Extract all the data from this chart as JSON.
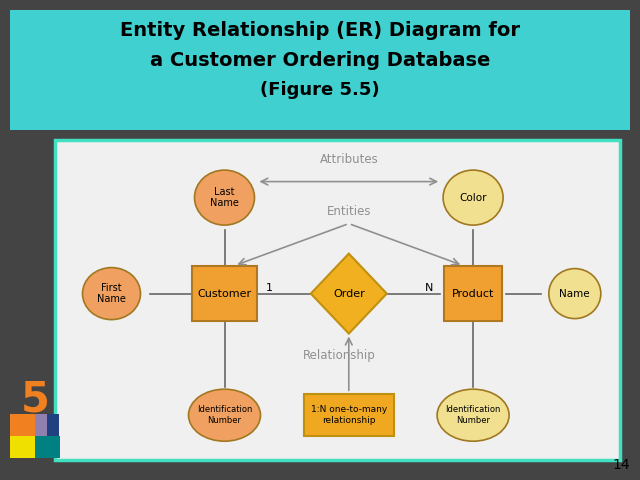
{
  "title_line1": "Entity Relationship (ER) Diagram for",
  "title_line2": "a Customer Ordering Database",
  "title_line3": "(Figure 5.5)",
  "bg_color": "#444444",
  "title_bg": "#40d0d0",
  "diagram_bg": "#f0f0f0",
  "diagram_border": "#40e0c0",
  "entity_fill": "#f0a030",
  "entity_edge": "#b07820",
  "attr_fill_l": "#f0a060",
  "attr_fill_r": "#f0e090",
  "relation_fill": "#f0b020",
  "relation_edge": "#c09010",
  "legend_fill": "#f0a820",
  "arrow_color": "#909090",
  "line_color": "#888888",
  "page_num": "14"
}
